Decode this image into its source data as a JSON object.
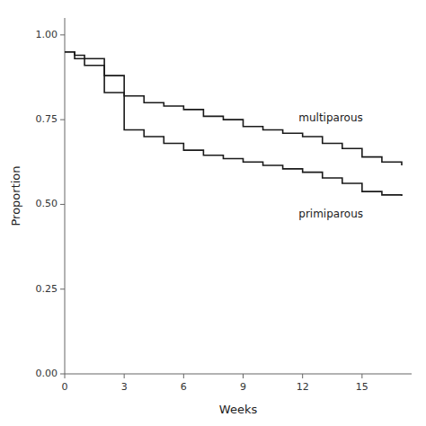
{
  "chart_data": {
    "type": "step",
    "x_label": "Weeks",
    "y_label": "Proportion",
    "xlim": [
      0,
      17.5
    ],
    "ylim": [
      0.0,
      1.05
    ],
    "xticks": [
      0,
      3,
      6,
      9,
      12,
      15
    ],
    "yticks": [
      {
        "value": 0.0,
        "label": "0.00"
      },
      0.25,
      {
        "value": 0.5,
        "label": "0.50"
      },
      0.75,
      {
        "value": 1.0,
        "label": "1.00"
      }
    ],
    "color": "#1a1a1a",
    "series": [
      {
        "x": [
          0,
          0.5,
          1,
          2,
          3,
          4,
          5,
          6,
          7,
          8,
          9,
          10,
          11,
          12,
          13,
          14,
          15,
          16,
          17
        ],
        "values": [
          0.95,
          0.94,
          0.93,
          0.88,
          0.82,
          0.8,
          0.79,
          0.78,
          0.76,
          0.75,
          0.73,
          0.72,
          0.71,
          0.7,
          0.68,
          0.665,
          0.64,
          0.625,
          0.615
        ]
      },
      {
        "x": [
          0,
          0.5,
          1,
          2,
          3,
          4,
          5,
          6,
          7,
          8,
          9,
          10,
          11,
          12,
          13,
          14,
          15,
          16,
          17
        ],
        "values": [
          0.95,
          0.93,
          0.91,
          0.83,
          0.72,
          0.7,
          0.68,
          0.66,
          0.645,
          0.635,
          0.625,
          0.615,
          0.605,
          0.595,
          0.578,
          0.562,
          0.538,
          0.528,
          0.525
        ]
      }
    ],
    "annotations": [
      {
        "text": "multiparous",
        "x": 11.8,
        "y": 0.755
      },
      {
        "text": "primiparous",
        "x": 11.8,
        "y": 0.47
      }
    ]
  }
}
